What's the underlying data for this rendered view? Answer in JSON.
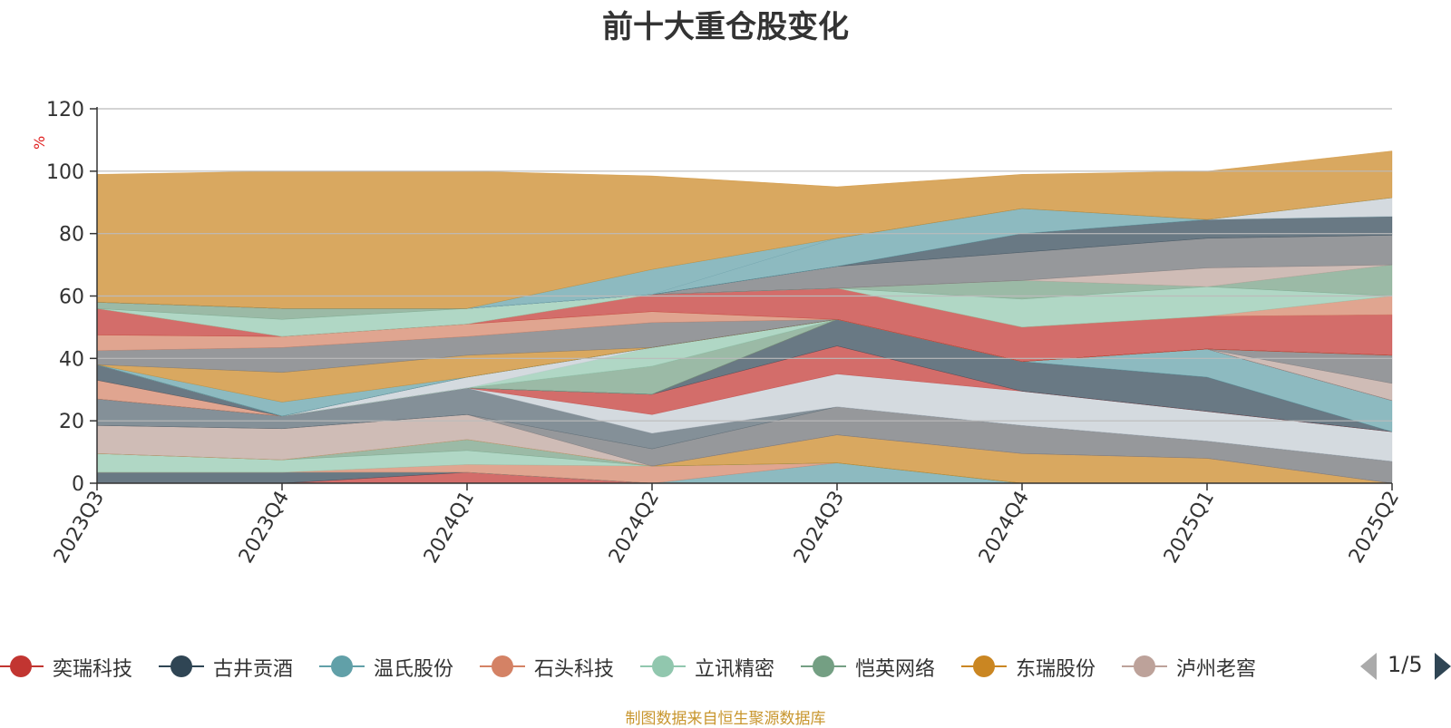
{
  "title": "前十大重仓股变化",
  "source_note": "制图数据来自恒生聚源数据库",
  "legend_pager": "1/5",
  "chart_data": {
    "type": "area",
    "stacked": true,
    "y_unit": "%",
    "ylim": [
      0,
      120
    ],
    "yticks": [
      0,
      20,
      40,
      60,
      80,
      100,
      120
    ],
    "grid": true,
    "categories": [
      "2023Q3",
      "2023Q4",
      "2024Q1",
      "2024Q2",
      "2024Q3",
      "2024Q4",
      "2025Q1",
      "2025Q2"
    ],
    "series": [
      {
        "name": "奕瑞科技",
        "color": "#c23531",
        "values": [
          0,
          0,
          3.5,
          0,
          0,
          0,
          0,
          0
        ]
      },
      {
        "name": "古井贡酒",
        "color": "#2f4554",
        "values": [
          3.5,
          3.5,
          0,
          0,
          0,
          0,
          0,
          0
        ]
      },
      {
        "name": "温氏股份",
        "color": "#61a0a8",
        "values": [
          0,
          0,
          0,
          0,
          6.5,
          0,
          0,
          0
        ]
      },
      {
        "name": "石头科技",
        "color": "#d48265",
        "values": [
          0,
          0,
          2.5,
          5.5,
          0,
          0,
          0,
          0
        ]
      },
      {
        "name": "立讯精密",
        "color": "#91c7ae",
        "values": [
          6,
          4,
          4.5,
          0,
          0,
          0,
          0,
          0
        ]
      },
      {
        "name": "恺英网络",
        "color": "#749f83",
        "values": [
          0,
          0,
          3.5,
          0,
          0,
          0,
          0,
          0
        ]
      },
      {
        "name": "东瑞股份",
        "color": "#ca8622",
        "values": [
          0,
          0,
          0,
          0,
          9,
          9.5,
          8,
          0
        ]
      },
      {
        "name": "泸州老窖",
        "color": "#bda29a",
        "values": [
          9,
          10,
          8,
          0,
          0,
          0,
          0,
          0
        ]
      },
      {
        "name": "",
        "color": "#6e7074",
        "values": [
          0,
          0,
          0,
          5.5,
          9,
          9,
          5.5,
          7
        ]
      },
      {
        "name": "",
        "color": "#546570",
        "values": [
          8.5,
          4,
          8.5,
          5,
          0,
          0,
          0,
          0
        ]
      },
      {
        "name": "",
        "color": "#c4ccd3",
        "values": [
          0,
          0,
          0,
          6,
          10.5,
          11,
          9.5,
          9.5
        ]
      },
      {
        "name": "",
        "color": "#c23531",
        "values": [
          0,
          0,
          0,
          6.5,
          9,
          0,
          0,
          0
        ]
      },
      {
        "name": "",
        "color": "#2f4554",
        "values": [
          0,
          0,
          0,
          0,
          8.5,
          9.5,
          11,
          0
        ]
      },
      {
        "name": "",
        "color": "#61a0a8",
        "values": [
          0,
          0,
          0,
          0,
          0,
          0,
          9,
          10
        ]
      },
      {
        "name": "",
        "color": "#d48265",
        "values": [
          6,
          0,
          0,
          0,
          0,
          0,
          0,
          0
        ]
      },
      {
        "name": "",
        "color": "#2f4554",
        "values": [
          5,
          0,
          0,
          0,
          0,
          0,
          0,
          0
        ]
      },
      {
        "name": "",
        "color": "#bda29a",
        "values": [
          0,
          0,
          0,
          0,
          0,
          0,
          0,
          5.5
        ]
      },
      {
        "name": "",
        "color": "#6e7074",
        "values": [
          0,
          0,
          0,
          0,
          0,
          0,
          0,
          9
        ]
      },
      {
        "name": "",
        "color": "#749f83",
        "values": [
          0,
          0,
          0,
          9,
          0,
          0,
          0,
          0
        ]
      },
      {
        "name": "",
        "color": "#91c7ae",
        "values": [
          0,
          0,
          0,
          6,
          0,
          0,
          0,
          0
        ]
      },
      {
        "name": "",
        "color": "#c4ccd3",
        "values": [
          0,
          0,
          3.5,
          0,
          0,
          0,
          0,
          0
        ]
      },
      {
        "name": "",
        "color": "#546570",
        "values": [
          0,
          0,
          0,
          0,
          0,
          0,
          0,
          0
        ]
      },
      {
        "name": "",
        "color": "#61a0a8",
        "values": [
          0,
          4.5,
          0,
          0,
          0,
          0,
          0,
          0
        ]
      },
      {
        "name": "",
        "color": "#ca8622",
        "values": [
          0,
          9.5,
          7,
          0,
          0,
          0,
          0,
          0
        ]
      },
      {
        "name": "",
        "color": "#6e7074",
        "values": [
          4.5,
          8,
          6,
          8,
          0,
          0,
          0,
          0
        ]
      },
      {
        "name": "",
        "color": "#d48265",
        "values": [
          5,
          3.5,
          4,
          3.5,
          0,
          0,
          0,
          0
        ]
      },
      {
        "name": "",
        "color": "#c23531",
        "values": [
          8.5,
          0,
          0,
          5.5,
          10,
          11,
          10.5,
          13
        ]
      },
      {
        "name": "",
        "color": "#d48265",
        "values": [
          0,
          0,
          0,
          0,
          0,
          0,
          0,
          6
        ]
      },
      {
        "name": "",
        "color": "#91c7ae",
        "values": [
          0,
          5.5,
          5,
          0,
          0,
          9,
          9.5,
          0
        ]
      },
      {
        "name": "",
        "color": "#749f83",
        "values": [
          2,
          3.5,
          0,
          0,
          0,
          6,
          0,
          10
        ]
      },
      {
        "name": "",
        "color": "#bda29a",
        "values": [
          0,
          0,
          0,
          0,
          0,
          0,
          6,
          0
        ]
      },
      {
        "name": "",
        "color": "#6e7074",
        "values": [
          0,
          0,
          0,
          0,
          7,
          9,
          9.5,
          9.5
        ]
      },
      {
        "name": "",
        "color": "#2f4554",
        "values": [
          0,
          0,
          0,
          0,
          0,
          6,
          6,
          6
        ]
      },
      {
        "name": "",
        "color": "#61a0a8",
        "values": [
          0,
          0,
          0,
          0,
          9,
          8,
          0,
          0
        ]
      },
      {
        "name": "",
        "color": "#c4ccd3",
        "values": [
          0,
          0,
          0,
          0,
          0,
          0,
          0,
          6
        ]
      },
      {
        "name": "",
        "color": "#61a0a8",
        "values": [
          0,
          0,
          0,
          8,
          0,
          0,
          0,
          0
        ]
      },
      {
        "name": "",
        "color": "#ca8622",
        "values": [
          41,
          44,
          44,
          30,
          16.5,
          11,
          15.5,
          15
        ]
      }
    ]
  }
}
